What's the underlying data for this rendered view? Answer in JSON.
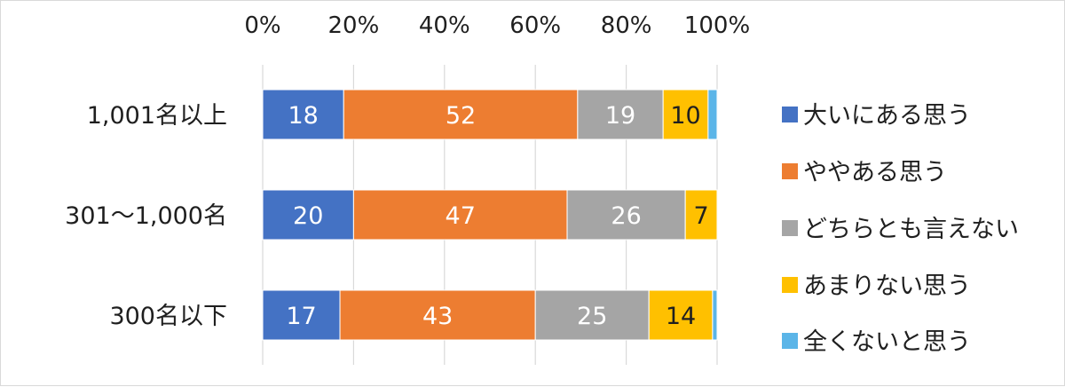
{
  "chart_data": {
    "type": "bar",
    "orientation": "horizontal",
    "stacked": true,
    "x_tick_labels": [
      "0%",
      "20%",
      "40%",
      "60%",
      "80%",
      "100%"
    ],
    "xlim": [
      0,
      100
    ],
    "grid": true,
    "legend_position": "right",
    "categories": [
      "1,001名以上",
      "301～1,000名",
      "300名以下"
    ],
    "series": [
      {
        "name": "大いにある思う",
        "color": "#4472C4",
        "values": [
          18,
          20,
          17
        ],
        "labels": [
          "18",
          "20",
          "17"
        ]
      },
      {
        "name": "ややある思う",
        "color": "#ED7D31",
        "values": [
          52,
          47,
          43
        ],
        "labels": [
          "52",
          "47",
          "43"
        ]
      },
      {
        "name": "どちらとも言えない",
        "color": "#A5A5A5",
        "values": [
          19,
          26,
          25
        ],
        "labels": [
          "19",
          "26",
          "25"
        ]
      },
      {
        "name": "あまりない思う",
        "color": "#FFC000",
        "values": [
          10,
          7,
          14
        ],
        "labels": [
          "10",
          "7",
          "14"
        ]
      },
      {
        "name": "全くないと思う",
        "color": "#5BB5E8",
        "values": [
          2,
          0,
          1
        ],
        "labels": [
          "",
          "",
          ""
        ]
      }
    ]
  }
}
